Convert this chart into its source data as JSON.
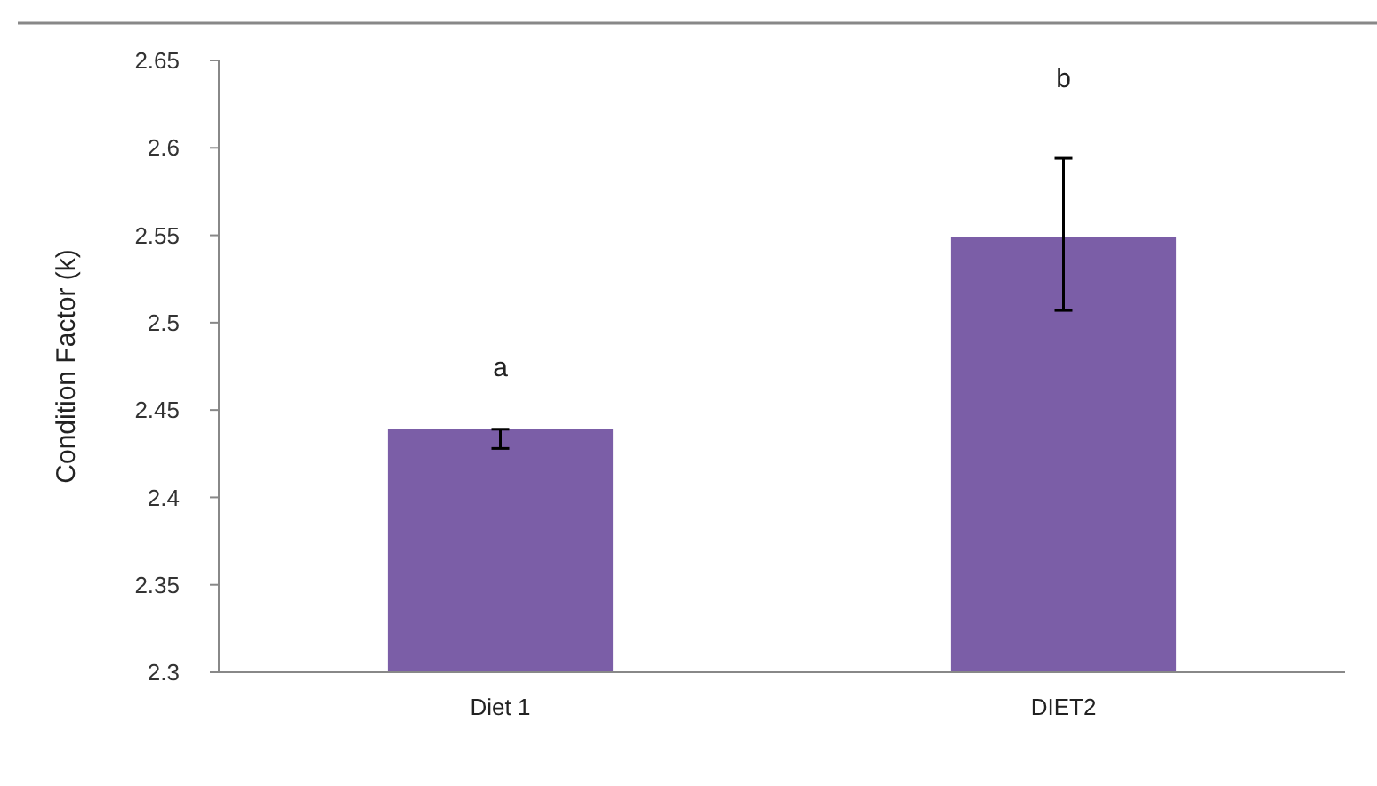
{
  "chart_data": {
    "type": "bar",
    "ylabel": "Condition Factor (k)",
    "categories": [
      "Diet 1",
      "DIET2"
    ],
    "values": [
      2.439,
      2.549
    ],
    "color": "#7b5ea7",
    "errors": [
      [
        2.428,
        2.439
      ],
      [
        2.507,
        2.594
      ]
    ],
    "ylim": [
      2.3,
      2.65
    ],
    "yticks": [
      2.3,
      2.35,
      2.4,
      2.45,
      2.5,
      2.55,
      2.6,
      2.65
    ],
    "grid": false,
    "annotations": [
      "a",
      "b"
    ]
  }
}
